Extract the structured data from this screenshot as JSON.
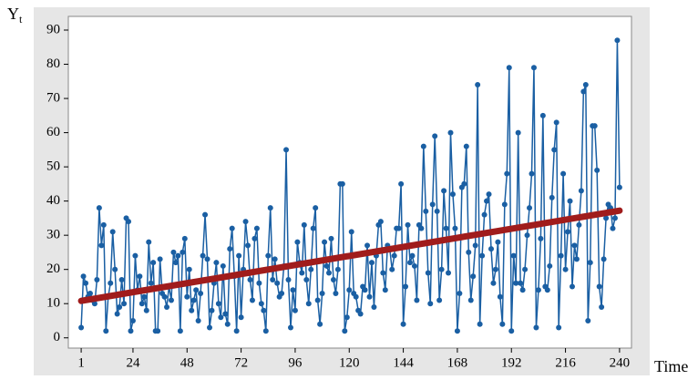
{
  "chart_data": {
    "type": "line",
    "ylabel": [
      "Y",
      "t"
    ],
    "xlabel": "Time",
    "xlim": [
      -4.7,
      245.3
    ],
    "ylim": [
      -3,
      94
    ],
    "xticks": [
      1,
      24,
      48,
      72,
      96,
      120,
      144,
      168,
      192,
      216,
      240
    ],
    "yticks": [
      0,
      10,
      20,
      30,
      40,
      50,
      60,
      70,
      80,
      90
    ],
    "grid": false,
    "series": [
      {
        "color": "#1a5fa3",
        "markers": true,
        "x": [
          1,
          2,
          3,
          4,
          5,
          6,
          7,
          8,
          9,
          10,
          11,
          12,
          13,
          14,
          15,
          16,
          17,
          18,
          19,
          20,
          21,
          22,
          23,
          24,
          25,
          26,
          27,
          28,
          29,
          30,
          31,
          32,
          33,
          34,
          35,
          36,
          37,
          38,
          39,
          40,
          41,
          42,
          43,
          44,
          45,
          46,
          47,
          48,
          49,
          50,
          51,
          52,
          53,
          54,
          55,
          56,
          57,
          58,
          59,
          60,
          61,
          62,
          63,
          64,
          65,
          66,
          67,
          68,
          69,
          70,
          71,
          72,
          73,
          74,
          75,
          76,
          77,
          78,
          79,
          80,
          81,
          82,
          83,
          84,
          85,
          86,
          87,
          88,
          89,
          90,
          91,
          92,
          93,
          94,
          95,
          96,
          97,
          98,
          99,
          100,
          101,
          102,
          103,
          104,
          105,
          106,
          107,
          108,
          109,
          110,
          111,
          112,
          113,
          114,
          115,
          116,
          117,
          118,
          119,
          120,
          121,
          122,
          123,
          124,
          125,
          126,
          127,
          128,
          129,
          130,
          131,
          132,
          133,
          134,
          135,
          136,
          137,
          138,
          139,
          140,
          141,
          142,
          143,
          144,
          145,
          146,
          147,
          148,
          149,
          150,
          151,
          152,
          153,
          154,
          155,
          156,
          157,
          158,
          159,
          160,
          161,
          162,
          163,
          164,
          165,
          166,
          167,
          168,
          169,
          170,
          171,
          172,
          173,
          174,
          175,
          176,
          177,
          178,
          179,
          180,
          181,
          182,
          183,
          184,
          185,
          186,
          187,
          188,
          189,
          190,
          191,
          192,
          193,
          194,
          195,
          196,
          197,
          198,
          199,
          200,
          201,
          202,
          203,
          204,
          205,
          206,
          207,
          208,
          209,
          210,
          211,
          212,
          213,
          214,
          215,
          216,
          217,
          218,
          219,
          220,
          221,
          222,
          223,
          224,
          225,
          226,
          227,
          228,
          229,
          230,
          231,
          232,
          233,
          234,
          235,
          236,
          237,
          238,
          239,
          240
        ],
        "values": [
          3,
          18,
          16,
          12,
          13,
          11,
          10,
          17,
          38,
          27,
          33,
          2,
          12,
          16,
          31,
          20,
          7,
          9,
          17,
          10,
          35,
          34,
          2,
          5,
          24,
          14,
          18,
          10,
          12,
          8,
          28,
          16,
          22,
          2,
          2,
          23,
          13,
          12,
          9,
          15,
          11,
          25,
          22,
          24,
          2,
          25,
          29,
          12,
          20,
          8,
          11,
          14,
          5,
          13,
          24,
          36,
          23,
          3,
          8,
          16,
          22,
          10,
          6,
          21,
          7,
          4,
          26,
          32,
          18,
          2,
          24,
          6,
          20,
          34,
          27,
          17,
          11,
          29,
          32,
          16,
          10,
          8,
          2,
          24,
          38,
          17,
          23,
          16,
          12,
          13,
          21,
          55,
          17,
          3,
          14,
          8,
          28,
          22,
          19,
          33,
          17,
          10,
          20,
          32,
          38,
          11,
          4,
          13,
          28,
          21,
          19,
          29,
          17,
          13,
          20,
          45,
          45,
          2,
          6,
          14,
          31,
          13,
          12,
          8,
          7,
          15,
          14,
          27,
          12,
          22,
          9,
          24,
          33,
          34,
          19,
          14,
          27,
          26,
          20,
          24,
          32,
          32,
          45,
          4,
          15,
          33,
          22,
          24,
          21,
          11,
          33,
          32,
          56,
          37,
          19,
          10,
          39,
          59,
          37,
          11,
          20,
          43,
          32,
          19,
          60,
          42,
          32,
          2,
          13,
          44,
          45,
          56,
          25,
          11,
          18,
          27,
          74,
          4,
          24,
          36,
          40,
          42,
          26,
          16,
          20,
          28,
          12,
          4,
          39,
          48,
          79,
          2,
          24,
          16,
          60,
          16,
          14,
          20,
          30,
          38,
          48,
          79,
          3,
          14,
          29,
          65,
          15,
          14,
          21,
          41,
          55,
          63,
          3,
          24,
          48,
          20,
          31,
          40,
          15,
          27,
          23,
          33,
          43,
          72,
          74,
          5,
          22,
          62,
          62,
          49,
          15,
          9,
          23,
          35,
          39,
          38,
          32,
          35,
          87,
          44
        ]
      },
      {
        "color": "#a01c1c",
        "markers": false,
        "x": [
          1,
          240
        ],
        "values": [
          10.8,
          37.2
        ]
      }
    ]
  }
}
